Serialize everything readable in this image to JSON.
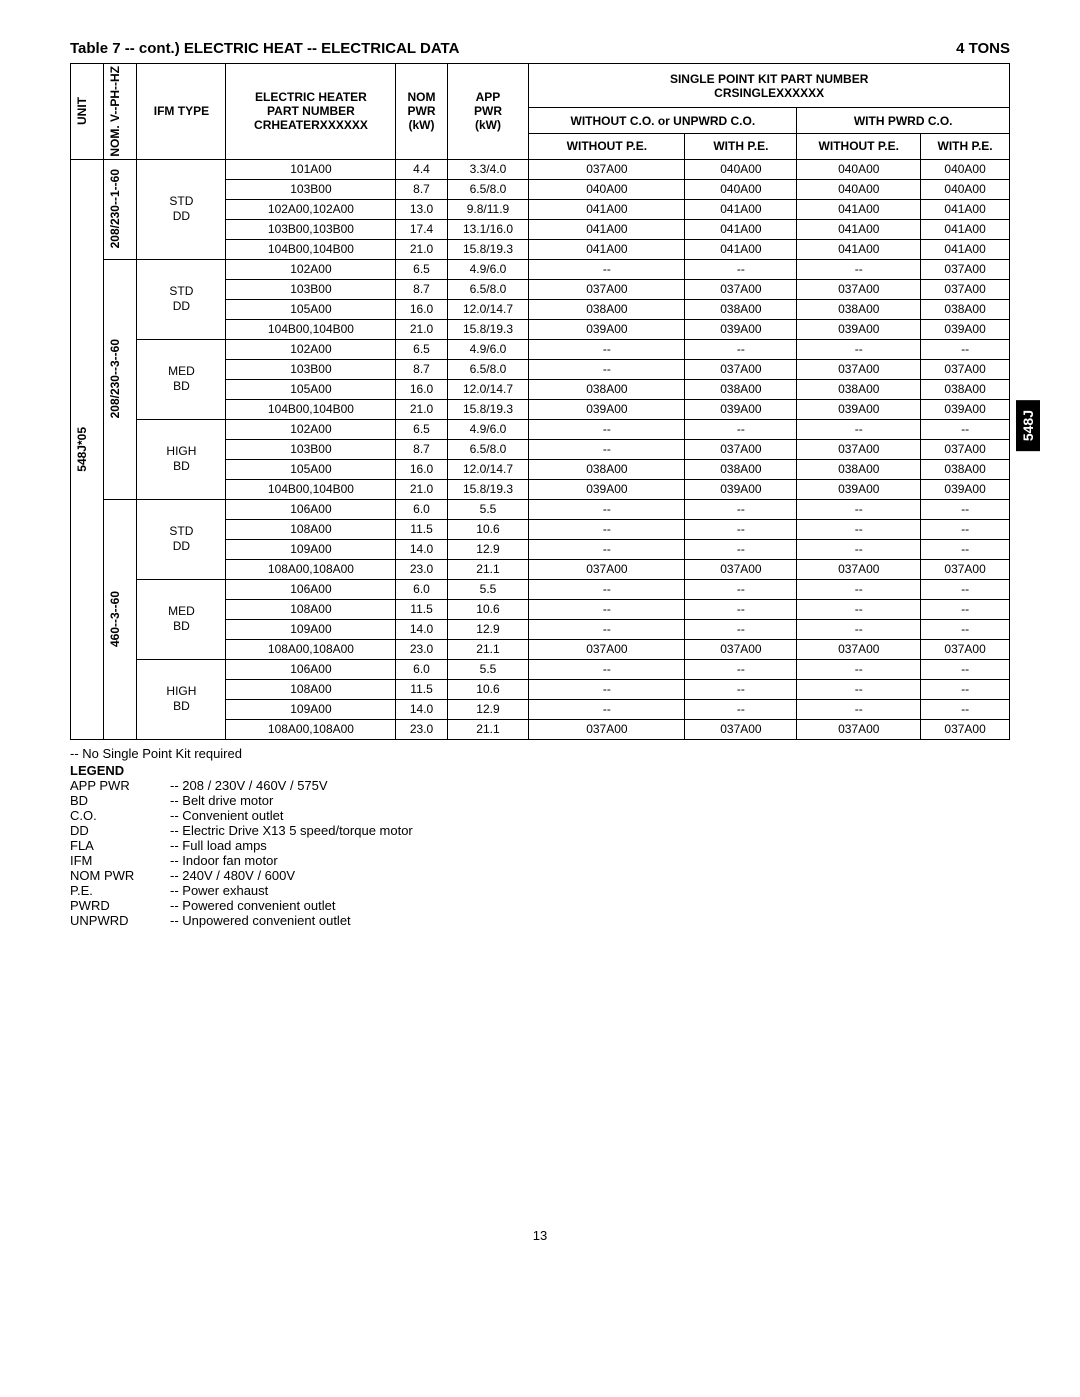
{
  "title_left": "Table 7 -- cont.) ELECTRIC HEAT -- ELECTRICAL DATA",
  "title_right": "4 TONS",
  "side_tab": "548J",
  "headers": {
    "unit": "UNIT",
    "vphz": "NOM. V--PH--HZ",
    "ifm": "IFM TYPE",
    "heater1": "ELECTRIC HEATER",
    "heater2": "PART NUMBER",
    "heater3": "CRHEATERXXXXXX",
    "nom1": "NOM",
    "nom2": "PWR",
    "nom3": "(kW)",
    "app1": "APP",
    "app2": "PWR",
    "app3": "(kW)",
    "spk1": "SINGLE POINT KIT PART NUMBER",
    "spk2": "CRSINGLEXXXXXX",
    "wo_co": "WITHOUT C.O. or UNPWRD C.O.",
    "w_co": "WITH PWRD C.O.",
    "wo_pe": "WITHOUT P.E.",
    "w_pe": "WITH P.E."
  },
  "unit_label": "548J*05",
  "voltage1": "208/230--1--60",
  "voltage2": "208/230--3--60",
  "voltage3": "460--3--60",
  "ifm_std": "STD",
  "ifm_dd": "DD",
  "ifm_med": "MED",
  "ifm_bd": "BD",
  "ifm_high": "HIGH",
  "groups": [
    {
      "rows": [
        {
          "heater": "101A00",
          "nom": "4.4",
          "app": "3.3/4.0",
          "a": "037A00",
          "b": "040A00",
          "c": "040A00",
          "d": "040A00"
        },
        {
          "heater": "103B00",
          "nom": "8.7",
          "app": "6.5/8.0",
          "a": "040A00",
          "b": "040A00",
          "c": "040A00",
          "d": "040A00"
        },
        {
          "heater": "102A00,102A00",
          "nom": "13.0",
          "app": "9.8/11.9",
          "a": "041A00",
          "b": "041A00",
          "c": "041A00",
          "d": "041A00"
        },
        {
          "heater": "103B00,103B00",
          "nom": "17.4",
          "app": "13.1/16.0",
          "a": "041A00",
          "b": "041A00",
          "c": "041A00",
          "d": "041A00"
        },
        {
          "heater": "104B00,104B00",
          "nom": "21.0",
          "app": "15.8/19.3",
          "a": "041A00",
          "b": "041A00",
          "c": "041A00",
          "d": "041A00"
        }
      ]
    },
    {
      "rows": [
        {
          "heater": "102A00",
          "nom": "6.5",
          "app": "4.9/6.0",
          "a": "--",
          "b": "--",
          "c": "--",
          "d": "037A00"
        },
        {
          "heater": "103B00",
          "nom": "8.7",
          "app": "6.5/8.0",
          "a": "037A00",
          "b": "037A00",
          "c": "037A00",
          "d": "037A00"
        },
        {
          "heater": "105A00",
          "nom": "16.0",
          "app": "12.0/14.7",
          "a": "038A00",
          "b": "038A00",
          "c": "038A00",
          "d": "038A00"
        },
        {
          "heater": "104B00,104B00",
          "nom": "21.0",
          "app": "15.8/19.3",
          "a": "039A00",
          "b": "039A00",
          "c": "039A00",
          "d": "039A00"
        }
      ]
    },
    {
      "rows": [
        {
          "heater": "102A00",
          "nom": "6.5",
          "app": "4.9/6.0",
          "a": "--",
          "b": "--",
          "c": "--",
          "d": "--"
        },
        {
          "heater": "103B00",
          "nom": "8.7",
          "app": "6.5/8.0",
          "a": "--",
          "b": "037A00",
          "c": "037A00",
          "d": "037A00"
        },
        {
          "heater": "105A00",
          "nom": "16.0",
          "app": "12.0/14.7",
          "a": "038A00",
          "b": "038A00",
          "c": "038A00",
          "d": "038A00"
        },
        {
          "heater": "104B00,104B00",
          "nom": "21.0",
          "app": "15.8/19.3",
          "a": "039A00",
          "b": "039A00",
          "c": "039A00",
          "d": "039A00"
        }
      ]
    },
    {
      "rows": [
        {
          "heater": "102A00",
          "nom": "6.5",
          "app": "4.9/6.0",
          "a": "--",
          "b": "--",
          "c": "--",
          "d": "--"
        },
        {
          "heater": "103B00",
          "nom": "8.7",
          "app": "6.5/8.0",
          "a": "--",
          "b": "037A00",
          "c": "037A00",
          "d": "037A00"
        },
        {
          "heater": "105A00",
          "nom": "16.0",
          "app": "12.0/14.7",
          "a": "038A00",
          "b": "038A00",
          "c": "038A00",
          "d": "038A00"
        },
        {
          "heater": "104B00,104B00",
          "nom": "21.0",
          "app": "15.8/19.3",
          "a": "039A00",
          "b": "039A00",
          "c": "039A00",
          "d": "039A00"
        }
      ]
    },
    {
      "rows": [
        {
          "heater": "106A00",
          "nom": "6.0",
          "app": "5.5",
          "a": "--",
          "b": "--",
          "c": "--",
          "d": "--"
        },
        {
          "heater": "108A00",
          "nom": "11.5",
          "app": "10.6",
          "a": "--",
          "b": "--",
          "c": "--",
          "d": "--"
        },
        {
          "heater": "109A00",
          "nom": "14.0",
          "app": "12.9",
          "a": "--",
          "b": "--",
          "c": "--",
          "d": "--"
        },
        {
          "heater": "108A00,108A00",
          "nom": "23.0",
          "app": "21.1",
          "a": "037A00",
          "b": "037A00",
          "c": "037A00",
          "d": "037A00"
        }
      ]
    },
    {
      "rows": [
        {
          "heater": "106A00",
          "nom": "6.0",
          "app": "5.5",
          "a": "--",
          "b": "--",
          "c": "--",
          "d": "--"
        },
        {
          "heater": "108A00",
          "nom": "11.5",
          "app": "10.6",
          "a": "--",
          "b": "--",
          "c": "--",
          "d": "--"
        },
        {
          "heater": "109A00",
          "nom": "14.0",
          "app": "12.9",
          "a": "--",
          "b": "--",
          "c": "--",
          "d": "--"
        },
        {
          "heater": "108A00,108A00",
          "nom": "23.0",
          "app": "21.1",
          "a": "037A00",
          "b": "037A00",
          "c": "037A00",
          "d": "037A00"
        }
      ]
    },
    {
      "rows": [
        {
          "heater": "106A00",
          "nom": "6.0",
          "app": "5.5",
          "a": "--",
          "b": "--",
          "c": "--",
          "d": "--"
        },
        {
          "heater": "108A00",
          "nom": "11.5",
          "app": "10.6",
          "a": "--",
          "b": "--",
          "c": "--",
          "d": "--"
        },
        {
          "heater": "109A00",
          "nom": "14.0",
          "app": "12.9",
          "a": "--",
          "b": "--",
          "c": "--",
          "d": "--"
        },
        {
          "heater": "108A00,108A00",
          "nom": "23.0",
          "app": "21.1",
          "a": "037A00",
          "b": "037A00",
          "c": "037A00",
          "d": "037A00"
        }
      ]
    }
  ],
  "footnote": "--   No Single Point Kit required",
  "legend_title": "LEGEND",
  "legend": [
    {
      "k": "APP PWR",
      "v": "--  208 / 230V / 460V / 575V"
    },
    {
      "k": "BD",
      "v": "--  Belt drive motor"
    },
    {
      "k": "C.O.",
      "v": "--  Convenient outlet"
    },
    {
      "k": "DD",
      "v": "--  Electric Drive X13 5 speed/torque motor"
    },
    {
      "k": "FLA",
      "v": "--  Full load amps"
    },
    {
      "k": "IFM",
      "v": "--  Indoor fan motor"
    },
    {
      "k": "NOM PWR",
      "v": "--  240V / 480V / 600V"
    },
    {
      "k": "P.E.",
      "v": "--  Power exhaust"
    },
    {
      "k": "PWRD",
      "v": "--  Powered convenient outlet"
    },
    {
      "k": "UNPWRD",
      "v": "--  Unpowered convenient outlet"
    }
  ],
  "page_number": "13"
}
